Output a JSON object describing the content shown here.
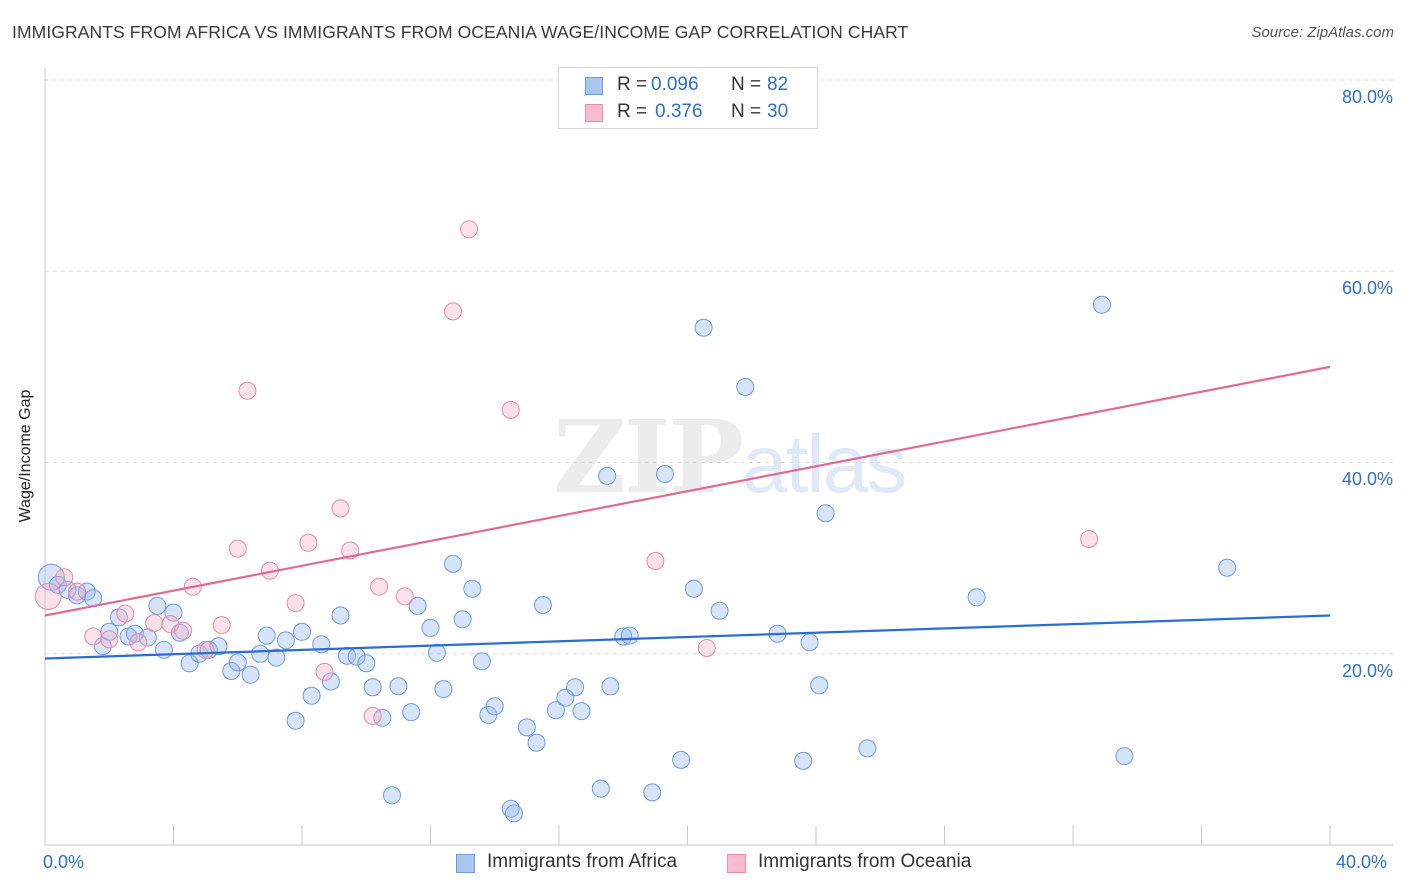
{
  "title": "IMMIGRANTS FROM AFRICA VS IMMIGRANTS FROM OCEANIA WAGE/INCOME GAP CORRELATION CHART",
  "source": "Source: ZipAtlas.com",
  "watermark": {
    "zip": "ZIP",
    "atlas": "atlas"
  },
  "legend_top": [
    {
      "r_label": "R =",
      "r_value": "0.096",
      "n_label": "N =",
      "n_value": "82",
      "color": "#a9c6f0",
      "stroke": "#6f9be0"
    },
    {
      "r_label": "R =",
      "r_value": "0.376",
      "n_label": "N =",
      "n_value": "30",
      "color": "#f7bcd0",
      "stroke": "#e88aa8"
    }
  ],
  "legend_bottom": [
    {
      "label": "Immigrants from Africa",
      "color": "#a9c6f0",
      "stroke": "#6f9be0"
    },
    {
      "label": "Immigrants from Oceania",
      "color": "#f7bcd0",
      "stroke": "#e88aa8"
    }
  ],
  "colors": {
    "blue_fill": "rgba(150,185,235,0.38)",
    "blue_stroke": "#6f9be0",
    "blue_line": "#2a6fd0",
    "pink_fill": "rgba(245,175,200,0.38)",
    "pink_stroke": "#e88aa8",
    "pink_line": "#e06a96",
    "grid": "#dcdcdc",
    "tick_text": "#2f6fce"
  },
  "chart_data": {
    "type": "scatter",
    "title": "IMMIGRANTS FROM AFRICA VS IMMIGRANTS FROM OCEANIA WAGE/INCOME GAP CORRELATION CHART",
    "xlabel": "",
    "ylabel": "Wage/Income Gap",
    "xlim": [
      0,
      40
    ],
    "ylim": [
      0,
      80
    ],
    "x_tick_labels": [
      "0.0%",
      "40.0%"
    ],
    "y_ticks": [
      20,
      40,
      60,
      80
    ],
    "y_tick_labels": [
      "20.0%",
      "40.0%",
      "60.0%",
      "80.0%"
    ],
    "grid": "horizontal dashed",
    "legend_placement": "top-center and bottom",
    "series": [
      {
        "name": "Immigrants from Africa",
        "R": 0.096,
        "N": 82,
        "trend": {
          "x": [
            0,
            40
          ],
          "y": [
            19.5,
            24.0
          ]
        },
        "points": [
          [
            0.2,
            28.0
          ],
          [
            0.4,
            27.2
          ],
          [
            0.7,
            26.7
          ],
          [
            1.0,
            26.1
          ],
          [
            1.3,
            26.5
          ],
          [
            1.5,
            25.8
          ],
          [
            1.8,
            20.8
          ],
          [
            2.0,
            22.3
          ],
          [
            2.3,
            23.8
          ],
          [
            2.6,
            21.8
          ],
          [
            2.8,
            22.1
          ],
          [
            3.2,
            21.7
          ],
          [
            3.5,
            25.0
          ],
          [
            3.7,
            20.4
          ],
          [
            4.0,
            24.3
          ],
          [
            4.2,
            22.2
          ],
          [
            4.5,
            19.0
          ],
          [
            4.8,
            20.0
          ],
          [
            5.1,
            20.4
          ],
          [
            5.4,
            20.8
          ],
          [
            5.8,
            18.2
          ],
          [
            6.0,
            19.1
          ],
          [
            6.4,
            17.8
          ],
          [
            6.7,
            20.0
          ],
          [
            6.9,
            21.9
          ],
          [
            7.2,
            19.6
          ],
          [
            7.5,
            21.4
          ],
          [
            7.8,
            13.0
          ],
          [
            8.0,
            22.3
          ],
          [
            8.3,
            15.6
          ],
          [
            8.6,
            21.0
          ],
          [
            8.9,
            17.1
          ],
          [
            9.2,
            24.0
          ],
          [
            9.4,
            19.8
          ],
          [
            9.7,
            19.7
          ],
          [
            10.0,
            19.0
          ],
          [
            10.2,
            16.5
          ],
          [
            10.5,
            13.3
          ],
          [
            10.8,
            5.2
          ],
          [
            11.0,
            16.6
          ],
          [
            11.4,
            13.9
          ],
          [
            11.6,
            25.0
          ],
          [
            12.0,
            22.7
          ],
          [
            12.2,
            20.1
          ],
          [
            12.4,
            16.3
          ],
          [
            12.7,
            29.4
          ],
          [
            13.0,
            23.6
          ],
          [
            13.3,
            26.8
          ],
          [
            13.6,
            19.2
          ],
          [
            13.8,
            13.6
          ],
          [
            14.0,
            14.5
          ],
          [
            14.5,
            3.8
          ],
          [
            14.6,
            3.3
          ],
          [
            15.0,
            12.3
          ],
          [
            15.3,
            10.7
          ],
          [
            15.5,
            25.1
          ],
          [
            15.9,
            14.1
          ],
          [
            16.2,
            15.4
          ],
          [
            16.5,
            16.5
          ],
          [
            16.7,
            14.0
          ],
          [
            17.3,
            5.9
          ],
          [
            17.6,
            16.6
          ],
          [
            17.5,
            38.6
          ],
          [
            18.0,
            21.8
          ],
          [
            18.2,
            21.9
          ],
          [
            18.9,
            5.5
          ],
          [
            19.3,
            38.8
          ],
          [
            19.8,
            8.9
          ],
          [
            20.2,
            26.8
          ],
          [
            20.5,
            54.1
          ],
          [
            21.0,
            24.5
          ],
          [
            21.8,
            47.9
          ],
          [
            22.8,
            22.1
          ],
          [
            23.6,
            8.8
          ],
          [
            23.8,
            21.2
          ],
          [
            24.1,
            16.7
          ],
          [
            24.3,
            34.7
          ],
          [
            25.6,
            10.1
          ],
          [
            29.0,
            25.9
          ],
          [
            32.9,
            56.5
          ],
          [
            33.6,
            9.3
          ],
          [
            36.8,
            29.0
          ]
        ]
      },
      {
        "name": "Immigrants from Oceania",
        "R": 0.376,
        "N": 30,
        "trend": {
          "x": [
            0,
            40
          ],
          "y": [
            24.0,
            50.0
          ]
        },
        "points": [
          [
            0.1,
            26.0
          ],
          [
            0.6,
            28.0
          ],
          [
            1.0,
            26.5
          ],
          [
            1.5,
            21.8
          ],
          [
            2.0,
            21.5
          ],
          [
            2.5,
            24.2
          ],
          [
            2.9,
            21.2
          ],
          [
            3.4,
            23.2
          ],
          [
            3.9,
            23.1
          ],
          [
            4.3,
            22.4
          ],
          [
            4.6,
            27.0
          ],
          [
            5.0,
            20.4
          ],
          [
            5.5,
            23.0
          ],
          [
            6.0,
            31.0
          ],
          [
            6.3,
            47.5
          ],
          [
            7.0,
            28.7
          ],
          [
            7.8,
            25.3
          ],
          [
            8.2,
            31.6
          ],
          [
            8.7,
            18.1
          ],
          [
            9.2,
            35.2
          ],
          [
            9.5,
            30.8
          ],
          [
            10.2,
            13.5
          ],
          [
            10.4,
            27.0
          ],
          [
            11.2,
            26.0
          ],
          [
            12.7,
            55.8
          ],
          [
            13.2,
            64.4
          ],
          [
            14.5,
            45.5
          ],
          [
            19.0,
            29.7
          ],
          [
            20.6,
            20.6
          ],
          [
            32.5,
            32.0
          ]
        ]
      }
    ]
  }
}
